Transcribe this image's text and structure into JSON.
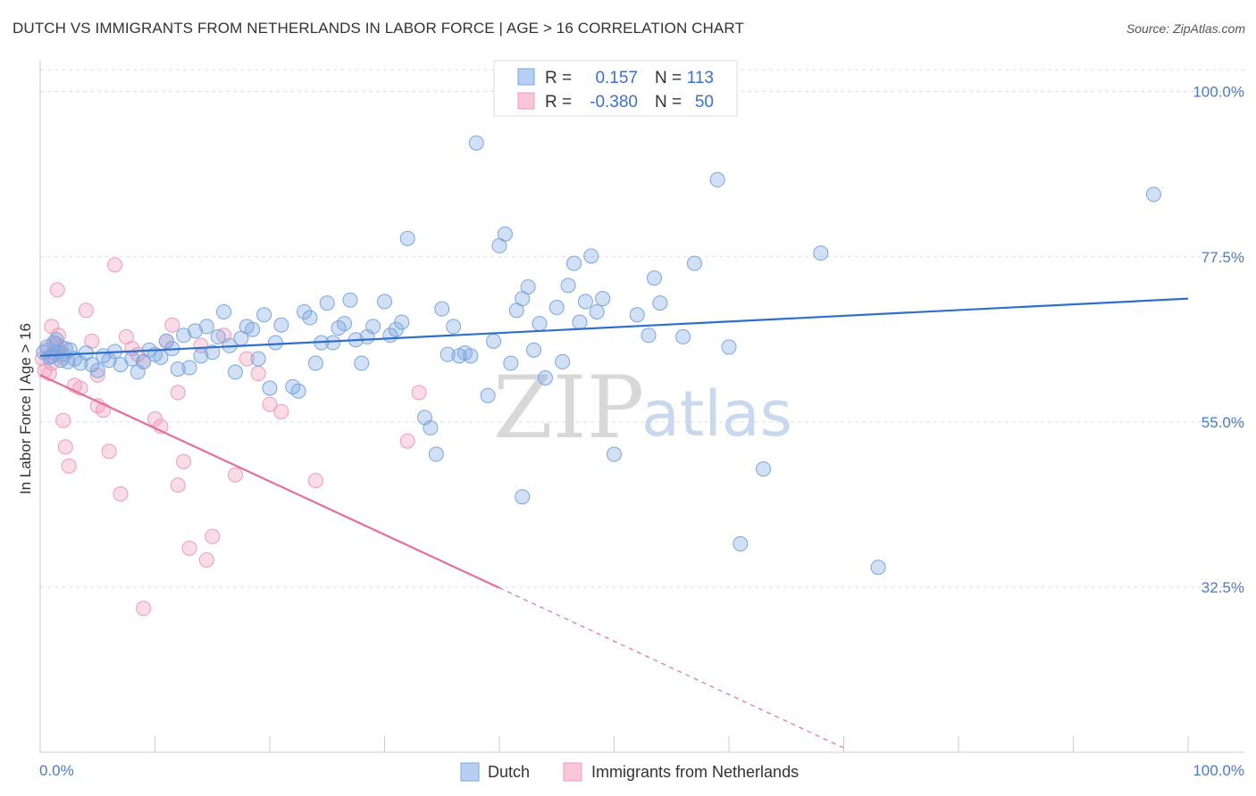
{
  "title": "DUTCH VS IMMIGRANTS FROM NETHERLANDS IN LABOR FORCE | AGE > 16 CORRELATION CHART",
  "source": "Source: ZipAtlas.com",
  "watermark": {
    "zip": "ZIP",
    "atlas": "atlas"
  },
  "chart_data": {
    "type": "scatter",
    "ylabel": "In Labor Force | Age > 16",
    "x_tick_labels": [
      "0.0%",
      "100.0%"
    ],
    "y_tick_labels": [
      "100.0%",
      "77.5%",
      "55.0%",
      "32.5%"
    ],
    "y_tick_values": [
      100.0,
      77.5,
      55.0,
      32.5
    ],
    "xlim": [
      0,
      100
    ],
    "ylim": [
      10,
      103
    ],
    "grid": true,
    "legend": {
      "rows": [
        {
          "r_label": "R =",
          "r_value": "0.157",
          "n_label": "N =",
          "n_value": "113"
        },
        {
          "r_label": "R =",
          "r_value": "-0.380",
          "n_label": "N =",
          "n_value": "50"
        }
      ],
      "bottom": [
        "Dutch",
        "Immigrants from Netherlands"
      ]
    },
    "colors": {
      "dutch": "#7aa6e0",
      "dutch_line": "#2e6fcc",
      "immig": "#f19ab8",
      "immig_line": "#e46e9a"
    },
    "series": [
      {
        "name": "Dutch",
        "trend": {
          "x0": 0,
          "y0": 64.0,
          "x1": 100,
          "y1": 71.8
        },
        "points": [
          [
            0.3,
            64.5
          ],
          [
            0.6,
            65.2
          ],
          [
            0.8,
            63.8
          ],
          [
            1.0,
            64.0
          ],
          [
            1.2,
            65.8
          ],
          [
            1.4,
            66.2
          ],
          [
            1.6,
            64.6
          ],
          [
            1.8,
            63.4
          ],
          [
            2.0,
            64.2
          ],
          [
            2.2,
            65.0
          ],
          [
            2.4,
            63.2
          ],
          [
            2.6,
            64.8
          ],
          [
            3.0,
            63.6
          ],
          [
            3.5,
            63.0
          ],
          [
            4.0,
            64.4
          ],
          [
            4.5,
            62.8
          ],
          [
            5.0,
            62.0
          ],
          [
            5.5,
            64.0
          ],
          [
            6.0,
            63.4
          ],
          [
            6.5,
            64.6
          ],
          [
            7.0,
            62.8
          ],
          [
            8.0,
            63.6
          ],
          [
            8.5,
            61.8
          ],
          [
            9.0,
            63.2
          ],
          [
            9.5,
            64.8
          ],
          [
            10.0,
            64.2
          ],
          [
            10.5,
            63.8
          ],
          [
            11.0,
            66.0
          ],
          [
            11.5,
            65.0
          ],
          [
            12.0,
            62.2
          ],
          [
            12.5,
            66.8
          ],
          [
            13.0,
            62.4
          ],
          [
            13.5,
            67.4
          ],
          [
            14.0,
            64.0
          ],
          [
            14.5,
            68.0
          ],
          [
            15.0,
            64.5
          ],
          [
            15.5,
            66.6
          ],
          [
            16.0,
            70.0
          ],
          [
            16.5,
            65.4
          ],
          [
            17.0,
            61.8
          ],
          [
            17.5,
            66.4
          ],
          [
            18.0,
            68.0
          ],
          [
            18.5,
            67.6
          ],
          [
            19.0,
            63.6
          ],
          [
            19.5,
            69.6
          ],
          [
            20.0,
            59.6
          ],
          [
            20.5,
            65.8
          ],
          [
            21.0,
            68.2
          ],
          [
            22.0,
            59.8
          ],
          [
            22.5,
            59.2
          ],
          [
            23.0,
            70.0
          ],
          [
            23.5,
            69.2
          ],
          [
            24.0,
            63.0
          ],
          [
            24.5,
            65.8
          ],
          [
            25.0,
            71.2
          ],
          [
            25.5,
            65.8
          ],
          [
            26.0,
            67.8
          ],
          [
            26.5,
            68.4
          ],
          [
            27.0,
            71.6
          ],
          [
            27.5,
            66.2
          ],
          [
            28.0,
            63.0
          ],
          [
            28.5,
            66.6
          ],
          [
            29.0,
            68.0
          ],
          [
            30.0,
            71.4
          ],
          [
            30.5,
            66.8
          ],
          [
            31.0,
            67.6
          ],
          [
            31.5,
            68.6
          ],
          [
            32.0,
            80.0
          ],
          [
            33.5,
            55.6
          ],
          [
            34.0,
            54.2
          ],
          [
            34.5,
            50.6
          ],
          [
            35.0,
            70.4
          ],
          [
            35.5,
            64.2
          ],
          [
            36.0,
            68.0
          ],
          [
            36.5,
            64.0
          ],
          [
            37.0,
            64.4
          ],
          [
            37.5,
            64.0
          ],
          [
            38.0,
            93.0
          ],
          [
            39.0,
            58.6
          ],
          [
            39.5,
            66.0
          ],
          [
            40.0,
            79.0
          ],
          [
            40.5,
            80.6
          ],
          [
            41.0,
            63.0
          ],
          [
            41.5,
            70.2
          ],
          [
            42.0,
            71.8
          ],
          [
            42.5,
            73.4
          ],
          [
            43.0,
            64.8
          ],
          [
            43.5,
            68.4
          ],
          [
            44.0,
            61.0
          ],
          [
            45.0,
            70.6
          ],
          [
            45.5,
            63.2
          ],
          [
            46.0,
            73.6
          ],
          [
            46.5,
            76.6
          ],
          [
            47.0,
            68.6
          ],
          [
            47.5,
            71.4
          ],
          [
            48.0,
            77.6
          ],
          [
            48.5,
            70.0
          ],
          [
            49.0,
            71.8
          ],
          [
            50.0,
            50.6
          ],
          [
            52.0,
            69.6
          ],
          [
            53.0,
            66.8
          ],
          [
            53.5,
            74.6
          ],
          [
            54.0,
            71.2
          ],
          [
            56.0,
            66.6
          ],
          [
            57.0,
            76.6
          ],
          [
            59.0,
            88.0
          ],
          [
            60.0,
            65.2
          ],
          [
            61.0,
            38.4
          ],
          [
            63.0,
            48.6
          ],
          [
            68.0,
            78.0
          ],
          [
            73.0,
            35.2
          ],
          [
            97.0,
            86.0
          ],
          [
            42.0,
            44.8
          ]
        ]
      },
      {
        "name": "Immigrants from Netherlands",
        "trend": {
          "x0": 0,
          "y0": 61.4,
          "x1": 40,
          "y1": 32.4,
          "dash_to_x": 70,
          "dash_to_y": 10.6
        },
        "points": [
          [
            0.2,
            63.6
          ],
          [
            0.4,
            62.0
          ],
          [
            0.6,
            64.8
          ],
          [
            0.8,
            61.6
          ],
          [
            1.0,
            63.0
          ],
          [
            1.2,
            64.4
          ],
          [
            1.4,
            65.6
          ],
          [
            1.6,
            66.8
          ],
          [
            1.8,
            65.2
          ],
          [
            2.0,
            63.8
          ],
          [
            1.0,
            68.0
          ],
          [
            1.5,
            73.0
          ],
          [
            2.0,
            55.2
          ],
          [
            2.2,
            51.6
          ],
          [
            2.5,
            49.0
          ],
          [
            3.0,
            60.0
          ],
          [
            3.5,
            59.6
          ],
          [
            4.0,
            70.2
          ],
          [
            4.5,
            66.0
          ],
          [
            5.0,
            61.4
          ],
          [
            5.5,
            56.6
          ],
          [
            6.0,
            51.0
          ],
          [
            6.5,
            76.4
          ],
          [
            7.0,
            45.2
          ],
          [
            7.5,
            66.6
          ],
          [
            8.0,
            65.0
          ],
          [
            8.5,
            64.2
          ],
          [
            9.0,
            63.2
          ],
          [
            10.0,
            55.4
          ],
          [
            10.5,
            54.4
          ],
          [
            11.0,
            66.0
          ],
          [
            11.5,
            68.2
          ],
          [
            12.0,
            46.4
          ],
          [
            12.5,
            49.6
          ],
          [
            13.0,
            37.8
          ],
          [
            14.0,
            65.4
          ],
          [
            14.5,
            36.2
          ],
          [
            15.0,
            39.4
          ],
          [
            16.0,
            66.8
          ],
          [
            9.0,
            29.6
          ],
          [
            5.0,
            57.2
          ],
          [
            12.0,
            59.0
          ],
          [
            18.0,
            63.6
          ],
          [
            19.0,
            61.6
          ],
          [
            20.0,
            57.4
          ],
          [
            21.0,
            56.4
          ],
          [
            17.0,
            47.8
          ],
          [
            24.0,
            47.0
          ],
          [
            32.0,
            52.4
          ],
          [
            33.0,
            59.0
          ]
        ]
      }
    ]
  }
}
